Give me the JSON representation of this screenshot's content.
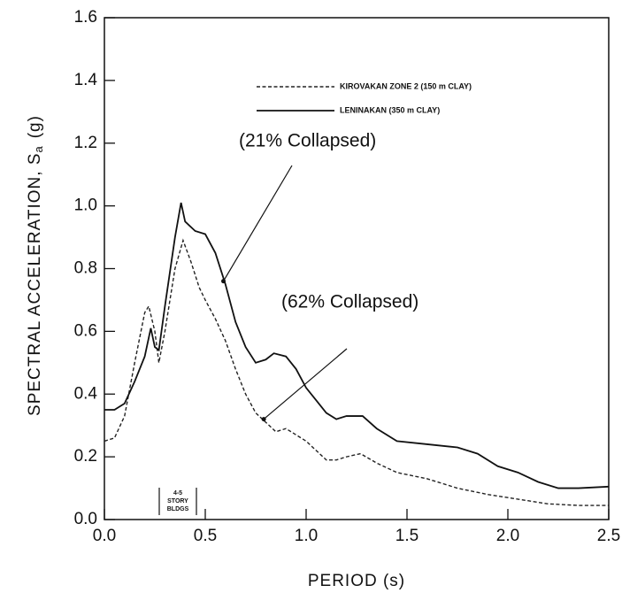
{
  "chart_data": {
    "type": "line",
    "xlabel": "PERIOD (s)",
    "ylabel": "SPECTRAL ACCELERATION, S",
    "ylabel_sub": "a",
    "ylabel_unit": "(g)",
    "xlim": [
      0,
      2.5
    ],
    "xticks": [
      {
        "value": 0,
        "label": "0.0"
      },
      0.5,
      {
        "value": 1,
        "label": "1.0"
      },
      1.5,
      {
        "value": 2,
        "label": "2.0"
      },
      2.5
    ],
    "ylim": [
      0,
      1.6
    ],
    "yticks": [
      {
        "value": 0,
        "label": "0.0"
      },
      0.2,
      0.4,
      0.6,
      0.8,
      {
        "value": 1,
        "label": "1.0"
      },
      1.2,
      1.4,
      1.6
    ],
    "series": [
      {
        "name": "KIROVAKAN ZONE 2 (150 m CLAY)",
        "color": "#222222",
        "dash": "dashed",
        "x": [
          0,
          0.05,
          0.1,
          0.15,
          0.2,
          0.22,
          0.25,
          0.27,
          0.3,
          0.35,
          0.39,
          0.43,
          0.47,
          0.5,
          0.55,
          0.6,
          0.65,
          0.7,
          0.75,
          0.8,
          0.85,
          0.9,
          0.95,
          1.0,
          1.05,
          1.1,
          1.15,
          1.2,
          1.27,
          1.35,
          1.45,
          1.6,
          1.75,
          1.9,
          2.0,
          2.1,
          2.2,
          2.35,
          2.5
        ],
        "values": [
          0.25,
          0.26,
          0.33,
          0.5,
          0.66,
          0.68,
          0.6,
          0.5,
          0.6,
          0.8,
          0.89,
          0.82,
          0.74,
          0.7,
          0.64,
          0.57,
          0.48,
          0.4,
          0.34,
          0.31,
          0.28,
          0.29,
          0.27,
          0.25,
          0.22,
          0.19,
          0.19,
          0.2,
          0.21,
          0.18,
          0.15,
          0.13,
          0.1,
          0.08,
          0.07,
          0.06,
          0.05,
          0.045,
          0.045
        ]
      },
      {
        "name": "LENINAKAN (350 m CLAY)",
        "color": "#111111",
        "dash": "solid",
        "x": [
          0,
          0.05,
          0.1,
          0.15,
          0.2,
          0.23,
          0.25,
          0.27,
          0.3,
          0.35,
          0.38,
          0.4,
          0.45,
          0.5,
          0.55,
          0.6,
          0.65,
          0.7,
          0.75,
          0.8,
          0.84,
          0.9,
          0.95,
          1.0,
          1.05,
          1.1,
          1.15,
          1.2,
          1.28,
          1.35,
          1.45,
          1.6,
          1.75,
          1.85,
          1.95,
          2.05,
          2.15,
          2.25,
          2.35,
          2.5
        ],
        "values": [
          0.35,
          0.35,
          0.37,
          0.44,
          0.52,
          0.61,
          0.55,
          0.54,
          0.68,
          0.9,
          1.01,
          0.95,
          0.92,
          0.91,
          0.85,
          0.75,
          0.63,
          0.55,
          0.5,
          0.51,
          0.53,
          0.52,
          0.48,
          0.42,
          0.38,
          0.34,
          0.32,
          0.33,
          0.33,
          0.29,
          0.25,
          0.24,
          0.23,
          0.21,
          0.17,
          0.15,
          0.12,
          0.1,
          0.1,
          0.105
        ]
      }
    ],
    "annotations": [
      {
        "text": "(21% Collapsed)",
        "x": 0.59,
        "y": 0.76
      },
      {
        "text": "(62% Collapsed)",
        "x": 0.79,
        "y": 0.32
      }
    ],
    "bracket_text": [
      "4-5",
      "STORY",
      "BLDGS"
    ],
    "legend": "upper right"
  }
}
